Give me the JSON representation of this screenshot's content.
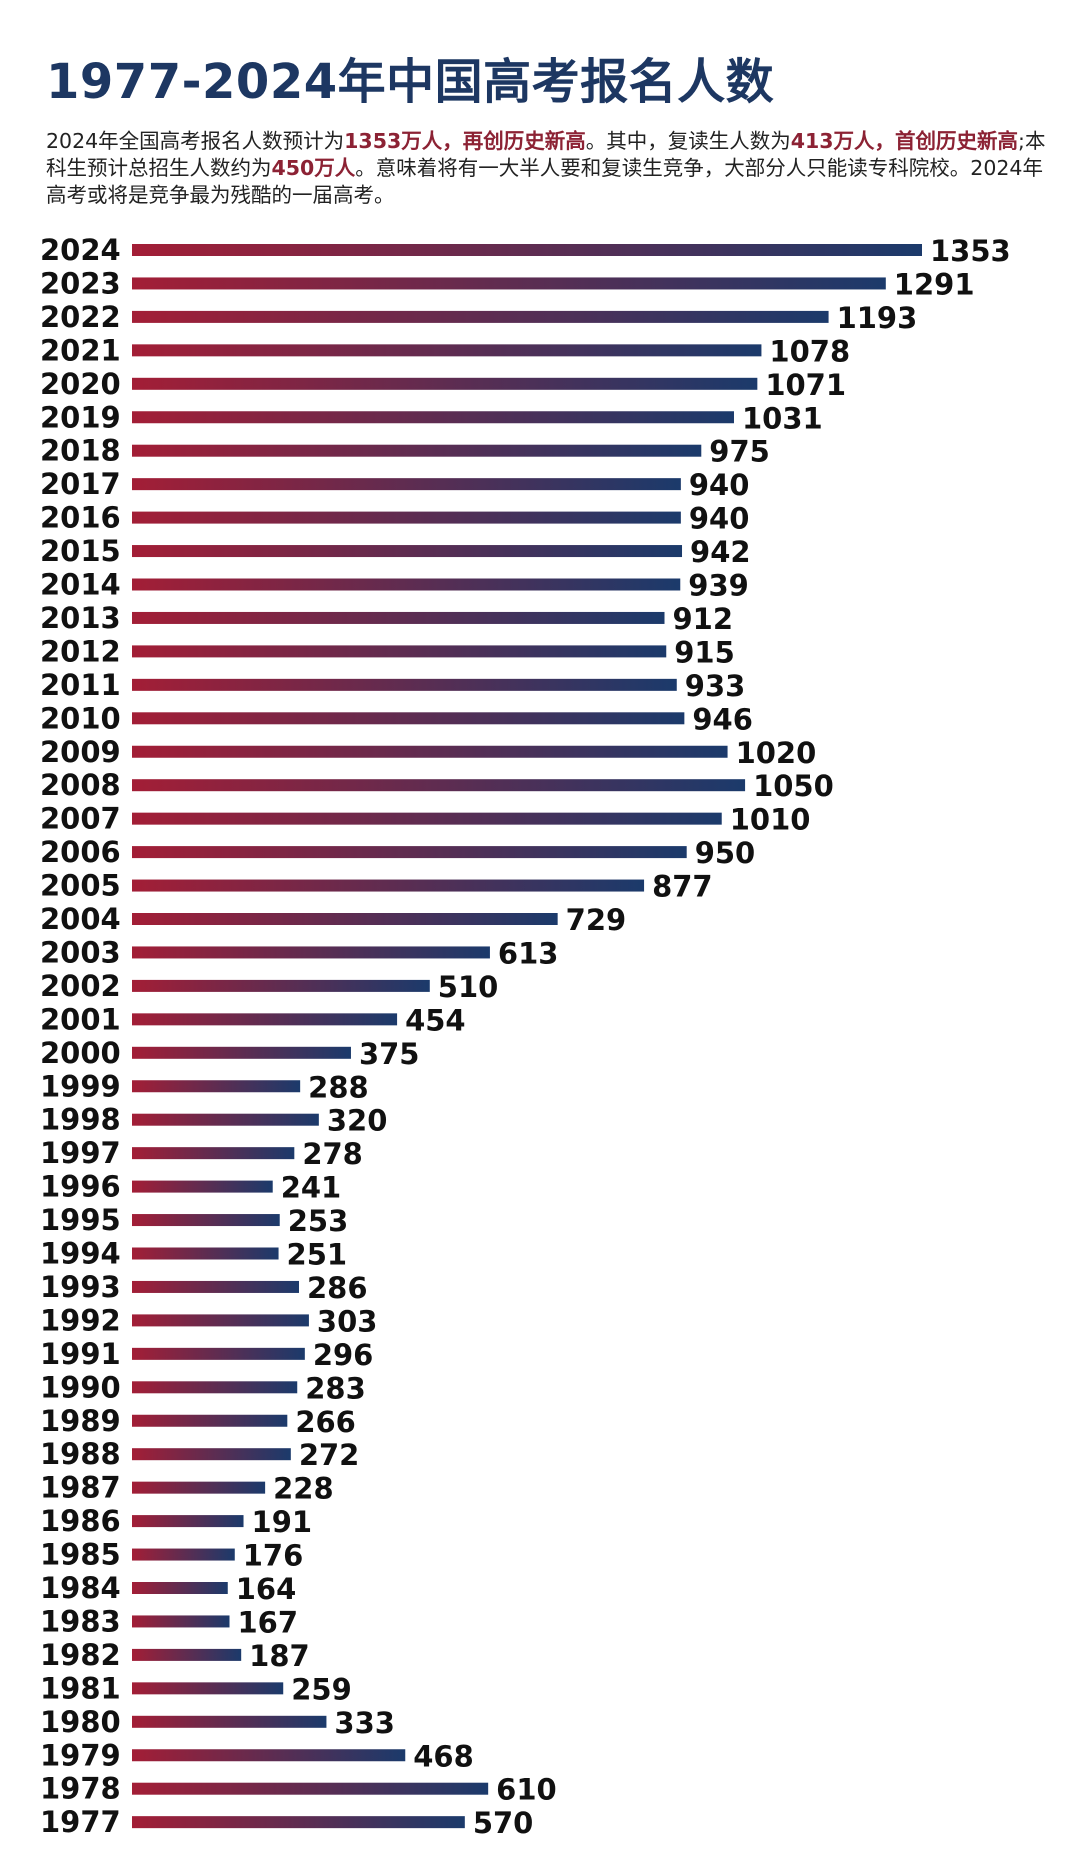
{
  "header": {
    "title": "1977-2024年中国高考报名人数",
    "intro": {
      "t1": "2024年全国高考报名人数预计为",
      "h1": "1353万人，再创历史新高",
      "t2": "。其中，复读生人数为",
      "h2": "413万人，首创历史新高",
      "t3": ";本科生预计总招生人数约为",
      "h3": "450万人",
      "t4": "。意味着将有一大半人要和复读生竞争，大部分人只能读专科院校。2024年高考或将是竞争最为残酷的一届高考。"
    }
  },
  "colors": {
    "title": "#1d3762",
    "highlight": "#8c2234",
    "bar_start": "#a31e36",
    "bar_end": "#1b3a6b"
  },
  "chart_data": {
    "type": "bar",
    "orientation": "horizontal",
    "title": "1977-2024年中国高考报名人数",
    "unit": "万人",
    "categories": [
      "2024",
      "2023",
      "2022",
      "2021",
      "2020",
      "2019",
      "2018",
      "2017",
      "2016",
      "2015",
      "2014",
      "2013",
      "2012",
      "2011",
      "2010",
      "2009",
      "2008",
      "2007",
      "2006",
      "2005",
      "2004",
      "2003",
      "2002",
      "2001",
      "2000",
      "1999",
      "1998",
      "1997",
      "1996",
      "1995",
      "1994",
      "1993",
      "1992",
      "1991",
      "1990",
      "1989",
      "1988",
      "1987",
      "1986",
      "1985",
      "1984",
      "1983",
      "1982",
      "1981",
      "1980",
      "1979",
      "1978",
      "1977"
    ],
    "values": [
      1353,
      1291,
      1193,
      1078,
      1071,
      1031,
      975,
      940,
      940,
      942,
      939,
      912,
      915,
      933,
      946,
      1020,
      1050,
      1010,
      950,
      877,
      729,
      613,
      510,
      454,
      375,
      288,
      320,
      278,
      241,
      253,
      251,
      286,
      303,
      296,
      283,
      266,
      272,
      228,
      191,
      176,
      164,
      167,
      187,
      259,
      333,
      468,
      610,
      570
    ],
    "xlim": [
      0,
      1353
    ]
  }
}
